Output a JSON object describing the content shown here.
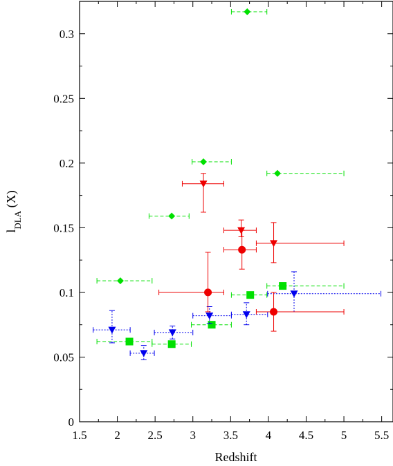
{
  "chart_data": {
    "type": "scatter",
    "xlabel": "Redshift",
    "ylabel": {
      "main": "l",
      "sub": "DLA",
      "suffix": " (X)"
    },
    "xlim": [
      1.5,
      5.65
    ],
    "ylim": [
      0,
      0.325
    ],
    "x_ticks": [
      "1.5",
      "2",
      "2.5",
      "3",
      "3.5",
      "4",
      "4.5",
      "5",
      "5.5"
    ],
    "y_ticks": [
      "0",
      "0.05",
      "0.1",
      "0.15",
      "0.2",
      "0.25",
      "0.3"
    ],
    "grid": false,
    "series": [
      {
        "marker": "diamond",
        "color": "#00e000",
        "line_style": "dashed",
        "points": [
          {
            "x": 2.04,
            "y": 0.109,
            "xlo": 1.73,
            "xhi": 2.46
          },
          {
            "x": 2.72,
            "y": 0.159,
            "xlo": 2.42,
            "xhi": 2.95
          },
          {
            "x": 3.14,
            "y": 0.201,
            "xlo": 2.99,
            "xhi": 3.51
          },
          {
            "x": 3.72,
            "y": 0.317,
            "xlo": 3.51,
            "xhi": 3.98
          },
          {
            "x": 4.12,
            "y": 0.192,
            "xlo": 3.98,
            "xhi": 5.0
          }
        ]
      },
      {
        "marker": "square",
        "color": "#00e000",
        "line_style": "dashed",
        "points": [
          {
            "x": 2.16,
            "y": 0.062,
            "xlo": 1.73,
            "xhi": 2.46
          },
          {
            "x": 2.72,
            "y": 0.06,
            "xlo": 2.46,
            "xhi": 2.98
          },
          {
            "x": 3.25,
            "y": 0.075,
            "xlo": 2.98,
            "xhi": 3.51
          },
          {
            "x": 3.76,
            "y": 0.098,
            "xlo": 3.51,
            "xhi": 3.98
          },
          {
            "x": 4.19,
            "y": 0.105,
            "xlo": 3.98,
            "xhi": 5.0
          }
        ]
      },
      {
        "marker": "triangle-down",
        "color": "#0000ee",
        "line_style": "dotted",
        "points": [
          {
            "x": 1.93,
            "y": 0.071,
            "xlo": 1.68,
            "xhi": 2.17,
            "ylo": 0.061,
            "yhi": 0.086
          },
          {
            "x": 2.35,
            "y": 0.053,
            "xlo": 2.17,
            "xhi": 2.49,
            "ylo": 0.048,
            "yhi": 0.059
          },
          {
            "x": 2.73,
            "y": 0.069,
            "xlo": 2.49,
            "xhi": 3.0,
            "ylo": 0.064,
            "yhi": 0.074
          },
          {
            "x": 3.22,
            "y": 0.082,
            "xlo": 3.0,
            "xhi": 3.51,
            "ylo": 0.076,
            "yhi": 0.089
          },
          {
            "x": 3.71,
            "y": 0.083,
            "xlo": 3.51,
            "xhi": 3.99,
            "ylo": 0.075,
            "yhi": 0.092
          },
          {
            "x": 4.34,
            "y": 0.099,
            "xlo": 3.99,
            "xhi": 5.49,
            "ylo": 0.085,
            "yhi": 0.116
          }
        ]
      },
      {
        "marker": "triangle-down",
        "color": "#ee0000",
        "line_style": "solid",
        "points": [
          {
            "x": 3.14,
            "y": 0.184,
            "xlo": 2.86,
            "xhi": 3.41,
            "ylo": 0.162,
            "yhi": 0.192
          },
          {
            "x": 3.64,
            "y": 0.148,
            "xlo": 3.41,
            "xhi": 3.84,
            "ylo": 0.143,
            "yhi": 0.156
          },
          {
            "x": 4.07,
            "y": 0.138,
            "xlo": 3.84,
            "xhi": 5.0,
            "ylo": 0.123,
            "yhi": 0.154
          }
        ]
      },
      {
        "marker": "circle",
        "color": "#ee0000",
        "line_style": "solid",
        "points": [
          {
            "x": 3.2,
            "y": 0.1,
            "xlo": 2.55,
            "xhi": 3.41,
            "ylo": 0.085,
            "yhi": 0.131
          },
          {
            "x": 3.65,
            "y": 0.133,
            "xlo": 3.41,
            "xhi": 3.84,
            "ylo": 0.118,
            "yhi": 0.148
          },
          {
            "x": 4.07,
            "y": 0.085,
            "xlo": 3.84,
            "xhi": 5.0,
            "ylo": 0.07,
            "yhi": 0.1
          }
        ]
      }
    ]
  }
}
